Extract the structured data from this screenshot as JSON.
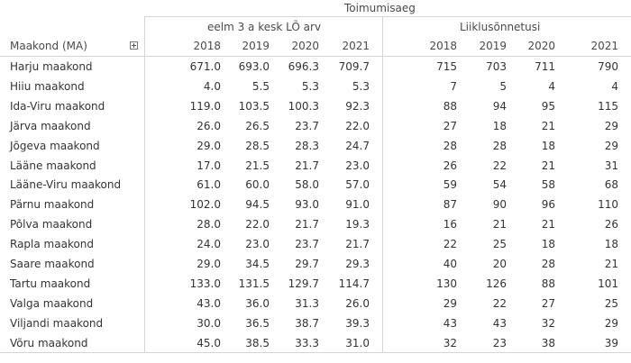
{
  "table": {
    "top_header": "Toimumisaeg",
    "group_headers": [
      "eelm 3 a kesk LÕ arv",
      "Liiklusõnnetusi"
    ],
    "row_header": "Maakond (MA)",
    "years": [
      "2018",
      "2019",
      "2020",
      "2021"
    ],
    "rows": [
      {
        "county": "Harju maakond",
        "avg": [
          "671.0",
          "693.0",
          "696.3",
          "709.7"
        ],
        "accidents": [
          "715",
          "703",
          "711",
          "790"
        ]
      },
      {
        "county": "Hiiu maakond",
        "avg": [
          "4.0",
          "5.5",
          "5.3",
          "5.3"
        ],
        "accidents": [
          "7",
          "5",
          "4",
          "4"
        ]
      },
      {
        "county": "Ida-Viru maakond",
        "avg": [
          "119.0",
          "103.5",
          "100.3",
          "92.3"
        ],
        "accidents": [
          "88",
          "94",
          "95",
          "115"
        ]
      },
      {
        "county": "Järva maakond",
        "avg": [
          "26.0",
          "26.5",
          "23.7",
          "22.0"
        ],
        "accidents": [
          "27",
          "18",
          "21",
          "29"
        ]
      },
      {
        "county": "Jõgeva maakond",
        "avg": [
          "29.0",
          "28.5",
          "28.3",
          "24.7"
        ],
        "accidents": [
          "28",
          "28",
          "18",
          "29"
        ]
      },
      {
        "county": "Lääne maakond",
        "avg": [
          "17.0",
          "21.5",
          "21.7",
          "23.0"
        ],
        "accidents": [
          "26",
          "22",
          "21",
          "31"
        ]
      },
      {
        "county": "Lääne-Viru maakond",
        "avg": [
          "61.0",
          "60.0",
          "58.0",
          "57.0"
        ],
        "accidents": [
          "59",
          "54",
          "58",
          "68"
        ]
      },
      {
        "county": "Pärnu maakond",
        "avg": [
          "102.0",
          "94.5",
          "93.0",
          "91.0"
        ],
        "accidents": [
          "87",
          "90",
          "96",
          "110"
        ]
      },
      {
        "county": "Põlva maakond",
        "avg": [
          "28.0",
          "22.0",
          "21.7",
          "19.3"
        ],
        "accidents": [
          "16",
          "21",
          "21",
          "26"
        ]
      },
      {
        "county": "Rapla maakond",
        "avg": [
          "24.0",
          "23.0",
          "23.7",
          "21.7"
        ],
        "accidents": [
          "22",
          "25",
          "18",
          "18"
        ]
      },
      {
        "county": "Saare maakond",
        "avg": [
          "29.0",
          "34.5",
          "29.7",
          "29.3"
        ],
        "accidents": [
          "40",
          "20",
          "28",
          "21"
        ]
      },
      {
        "county": "Tartu maakond",
        "avg": [
          "133.0",
          "131.5",
          "129.7",
          "114.7"
        ],
        "accidents": [
          "130",
          "126",
          "88",
          "101"
        ]
      },
      {
        "county": "Valga maakond",
        "avg": [
          "43.0",
          "36.0",
          "31.3",
          "26.0"
        ],
        "accidents": [
          "29",
          "22",
          "27",
          "25"
        ]
      },
      {
        "county": "Viljandi maakond",
        "avg": [
          "30.0",
          "36.5",
          "38.7",
          "39.3"
        ],
        "accidents": [
          "43",
          "43",
          "32",
          "29"
        ]
      },
      {
        "county": "Võru maakond",
        "avg": [
          "45.0",
          "38.5",
          "33.3",
          "31.0"
        ],
        "accidents": [
          "32",
          "23",
          "38",
          "39"
        ]
      }
    ]
  }
}
